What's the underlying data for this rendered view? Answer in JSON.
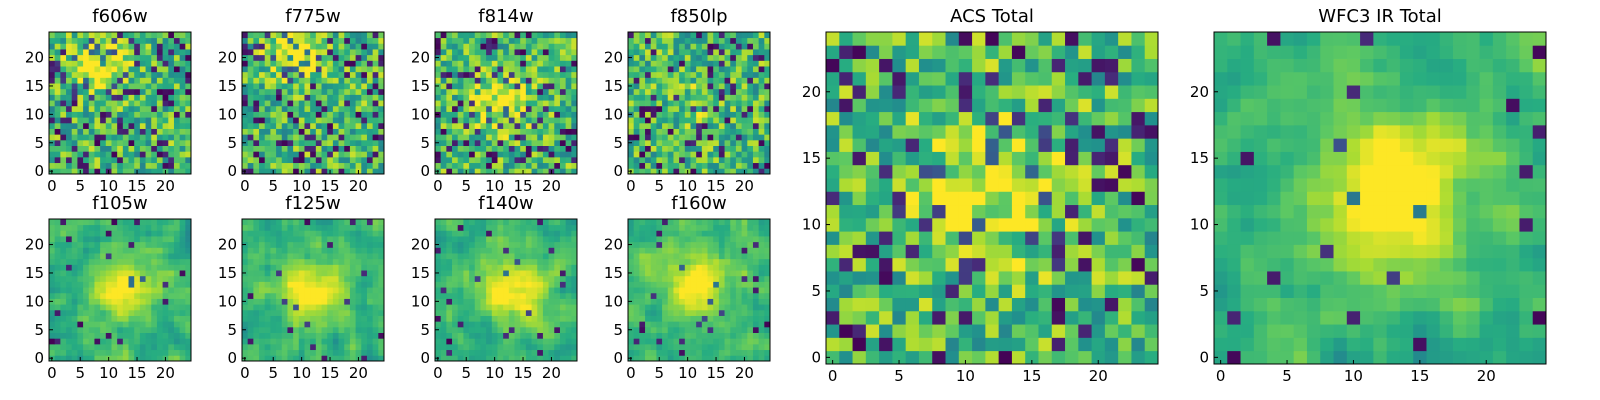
{
  "chart_data": [
    {
      "type": "heatmap",
      "title": "f606w",
      "xticks": [
        "0",
        "5",
        "10",
        "15",
        "20"
      ],
      "yticks": [
        "0",
        "5",
        "10",
        "15",
        "20"
      ],
      "xlim": [
        -0.5,
        24.5
      ],
      "ylim": [
        -0.5,
        24.5
      ],
      "grid_size": [
        25,
        25
      ],
      "colormap": "viridis",
      "seed": 11,
      "blob": {
        "x": 8,
        "y": 19,
        "r": 3.5,
        "strength": 0.4
      }
    },
    {
      "type": "heatmap",
      "title": "f775w",
      "xticks": [
        "0",
        "5",
        "10",
        "15",
        "20"
      ],
      "yticks": [
        "0",
        "5",
        "10",
        "15",
        "20"
      ],
      "xlim": [
        -0.5,
        24.5
      ],
      "ylim": [
        -0.5,
        24.5
      ],
      "grid_size": [
        25,
        25
      ],
      "colormap": "viridis",
      "seed": 23,
      "blob": {
        "x": 9,
        "y": 21,
        "r": 3,
        "strength": 0.45
      }
    },
    {
      "type": "heatmap",
      "title": "f814w",
      "xticks": [
        "0",
        "5",
        "10",
        "15",
        "20"
      ],
      "yticks": [
        "0",
        "5",
        "10",
        "15",
        "20"
      ],
      "xlim": [
        -0.5,
        24.5
      ],
      "ylim": [
        -0.5,
        24.5
      ],
      "grid_size": [
        25,
        25
      ],
      "colormap": "viridis",
      "seed": 37,
      "blob": {
        "x": 11,
        "y": 12,
        "r": 3.5,
        "strength": 0.3
      }
    },
    {
      "type": "heatmap",
      "title": "f850lp",
      "xticks": [
        "0",
        "5",
        "10",
        "15",
        "20"
      ],
      "yticks": [
        "0",
        "5",
        "10",
        "15",
        "20"
      ],
      "xlim": [
        -0.5,
        24.5
      ],
      "ylim": [
        -0.5,
        24.5
      ],
      "grid_size": [
        25,
        25
      ],
      "colormap": "viridis",
      "seed": 41,
      "blob": {
        "x": 12,
        "y": 12,
        "r": 2.5,
        "strength": 0.15
      }
    },
    {
      "type": "heatmap",
      "title": "f105w",
      "xticks": [
        "0",
        "5",
        "10",
        "15",
        "20"
      ],
      "yticks": [
        "0",
        "5",
        "10",
        "15",
        "20"
      ],
      "xlim": [
        -0.5,
        24.5
      ],
      "ylim": [
        -0.5,
        24.5
      ],
      "grid_size": [
        25,
        25
      ],
      "colormap": "viridis",
      "seed": 53,
      "smooth": true,
      "blob": {
        "x": 13,
        "y": 12,
        "r": 4,
        "strength": 0.35
      }
    },
    {
      "type": "heatmap",
      "title": "f125w",
      "xticks": [
        "0",
        "5",
        "10",
        "15",
        "20"
      ],
      "yticks": [
        "0",
        "5",
        "10",
        "15",
        "20"
      ],
      "xlim": [
        -0.5,
        24.5
      ],
      "ylim": [
        -0.5,
        24.5
      ],
      "grid_size": [
        25,
        25
      ],
      "colormap": "viridis",
      "seed": 67,
      "smooth": true,
      "blob": {
        "x": 12,
        "y": 12,
        "r": 4,
        "strength": 0.35
      }
    },
    {
      "type": "heatmap",
      "title": "f140w",
      "xticks": [
        "0",
        "5",
        "10",
        "15",
        "20"
      ],
      "yticks": [
        "0",
        "5",
        "10",
        "15",
        "20"
      ],
      "xlim": [
        -0.5,
        24.5
      ],
      "ylim": [
        -0.5,
        24.5
      ],
      "grid_size": [
        25,
        25
      ],
      "colormap": "viridis",
      "seed": 79,
      "smooth": true,
      "blob": {
        "x": 13,
        "y": 12,
        "r": 4,
        "strength": 0.4
      }
    },
    {
      "type": "heatmap",
      "title": "f160w",
      "xticks": [
        "0",
        "5",
        "10",
        "15",
        "20"
      ],
      "yticks": [
        "0",
        "5",
        "10",
        "15",
        "20"
      ],
      "xlim": [
        -0.5,
        24.5
      ],
      "ylim": [
        -0.5,
        24.5
      ],
      "grid_size": [
        25,
        25
      ],
      "colormap": "viridis",
      "seed": 83,
      "smooth": true,
      "blob": {
        "x": 12,
        "y": 13,
        "r": 4,
        "strength": 0.4
      }
    },
    {
      "type": "heatmap",
      "title": "ACS Total",
      "xticks": [
        "0",
        "5",
        "10",
        "15",
        "20"
      ],
      "yticks": [
        "0",
        "5",
        "10",
        "15",
        "20"
      ],
      "xlim": [
        -0.5,
        24.5
      ],
      "ylim": [
        -0.5,
        24.5
      ],
      "grid_size": [
        25,
        25
      ],
      "colormap": "viridis",
      "seed": 97,
      "blob": {
        "x": 12,
        "y": 13,
        "r": 4,
        "strength": 0.3
      }
    },
    {
      "type": "heatmap",
      "title": "WFC3 IR Total",
      "xticks": [
        "0",
        "5",
        "10",
        "15",
        "20"
      ],
      "yticks": [
        "0",
        "5",
        "10",
        "15",
        "20"
      ],
      "xlim": [
        -0.5,
        24.5
      ],
      "ylim": [
        -0.5,
        24.5
      ],
      "grid_size": [
        25,
        25
      ],
      "colormap": "viridis",
      "seed": 101,
      "smooth": true,
      "blob": {
        "x": 13,
        "y": 13,
        "r": 4.5,
        "strength": 0.45
      }
    }
  ]
}
